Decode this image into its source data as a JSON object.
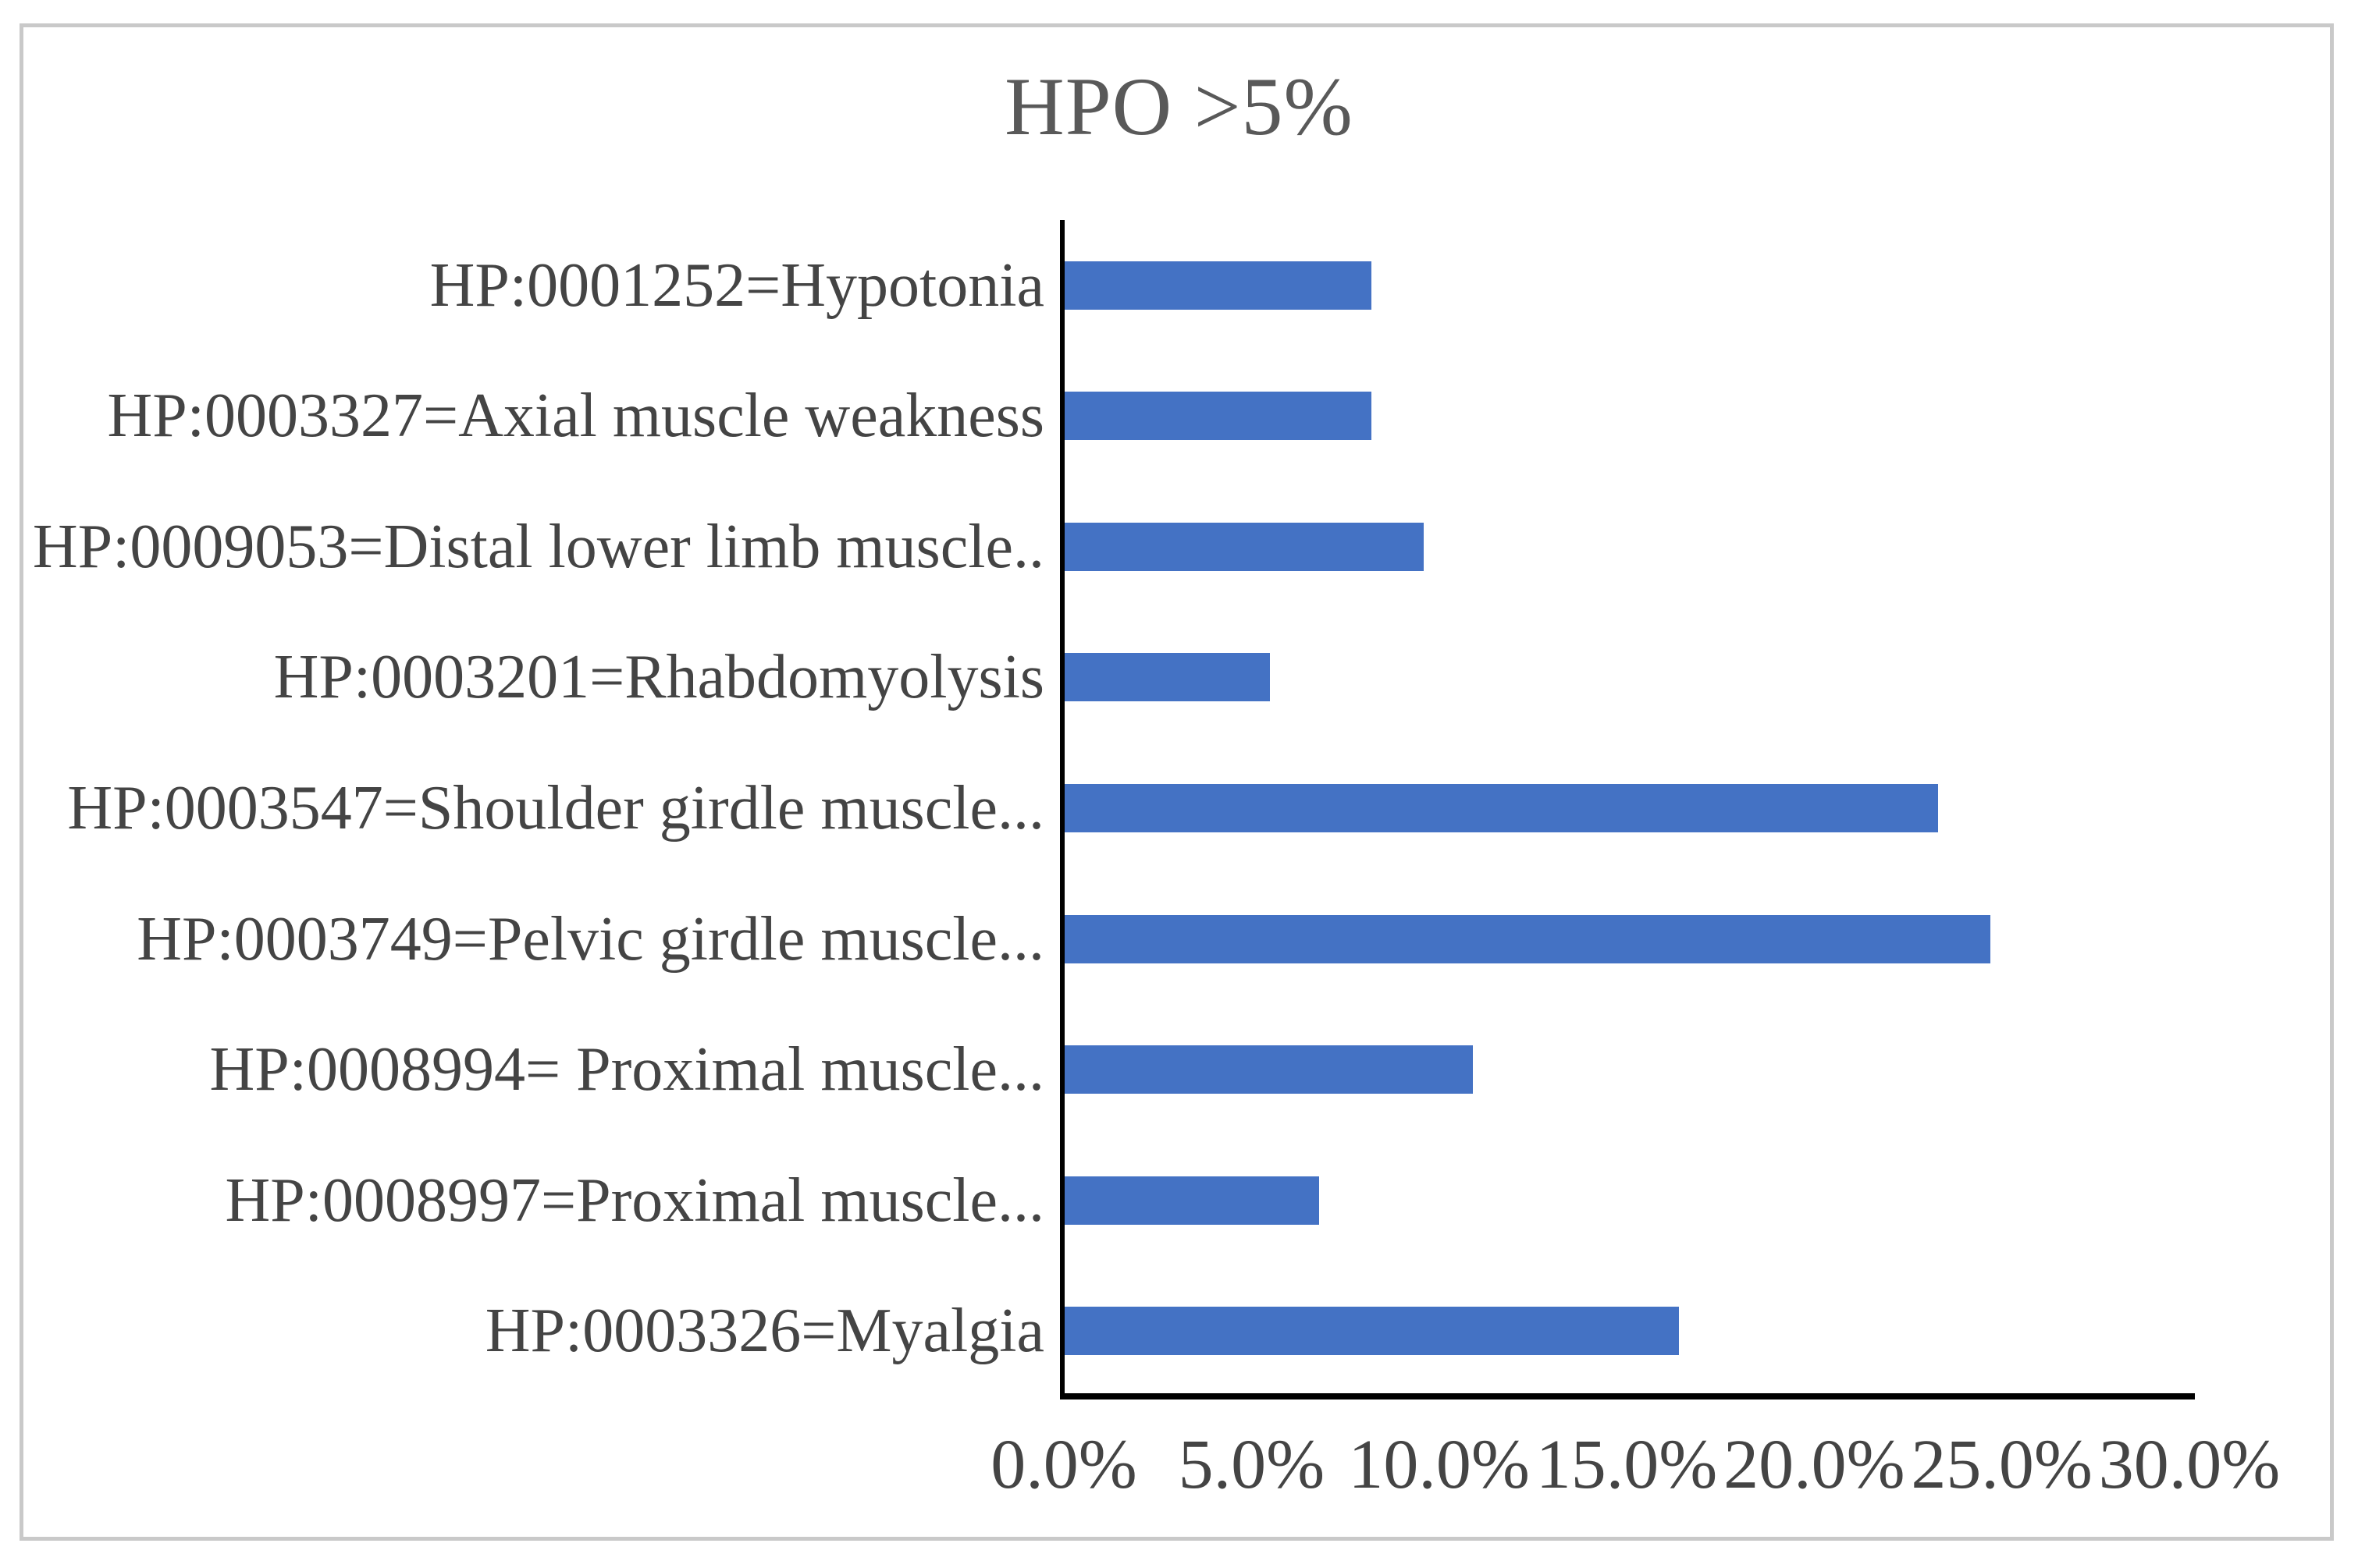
{
  "figure": {
    "border_color": "#c9c9c9",
    "background_color": "#ffffff"
  },
  "chart_data": {
    "type": "bar",
    "orientation": "horizontal",
    "title": "HPO >5%",
    "categories": [
      "HP:0001252=Hypotonia",
      "HP:0003327=Axial muscle weakness",
      "HP:0009053=Distal lower limb muscle..",
      "HP:0003201=Rhabdomyolysis",
      "HP:0003547=Shoulder girdle muscle...",
      "HP:0003749=Pelvic girdle muscle...",
      "HP:0008994= Proximal muscle...",
      "HP:0008997=Proximal muscle...",
      "HP:0003326=Myalgia"
    ],
    "values": [
      8.2,
      8.2,
      9.6,
      5.5,
      23.3,
      24.7,
      10.9,
      6.8,
      16.4
    ],
    "unit": "%",
    "xlabel": "",
    "ylabel": "",
    "xlim": [
      0,
      30
    ],
    "x_ticks": [
      "0.0%",
      "5.0%",
      "10.0%",
      "15.0%",
      "20.0%",
      "25.0%",
      "30.0%"
    ],
    "x_tick_values": [
      0,
      5,
      10,
      15,
      20,
      25,
      30
    ],
    "grid": false,
    "legend": false,
    "bar_color": "#4472C4",
    "axis_color": "#000000",
    "label_text_color": "#444444",
    "tick_text_color": "#444444",
    "title_color": "#595959"
  }
}
